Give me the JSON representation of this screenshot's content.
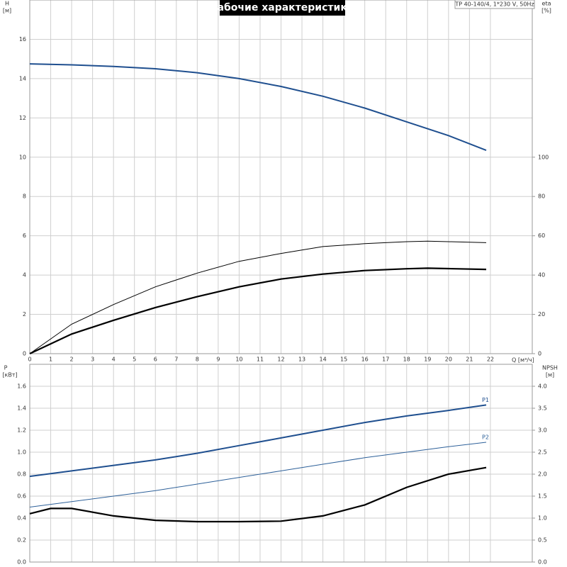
{
  "chart_data": [
    {
      "type": "line",
      "title": "Рабочие характеристики",
      "model": "TP 40-140/4, 1*230 V, 50Hz",
      "ylabel": "H",
      "yunit": "[м]",
      "y2label": "eta",
      "y2unit": "[%]",
      "xlabel": "Q [м³/ч]",
      "xlim": [
        0,
        24
      ],
      "xticks": [
        0,
        1,
        2,
        3,
        4,
        5,
        6,
        7,
        8,
        9,
        10,
        11,
        12,
        13,
        14,
        15,
        16,
        17,
        18,
        19,
        20,
        21,
        22
      ],
      "ylim": [
        0,
        18
      ],
      "yticks": [
        0,
        2,
        4,
        6,
        8,
        10,
        12,
        14,
        16
      ],
      "y2lim": [
        0,
        180
      ],
      "y2ticks": [
        0,
        20,
        40,
        60,
        80,
        100
      ],
      "grid": true,
      "series": [
        {
          "color": "#1f4f8f",
          "line_width": 2,
          "x": [
            0,
            2,
            4,
            6,
            8,
            10,
            12,
            14,
            16,
            18,
            20,
            21.8
          ],
          "values": [
            14.75,
            14.7,
            14.62,
            14.5,
            14.3,
            14.0,
            13.6,
            13.1,
            12.5,
            11.8,
            11.1,
            10.35
          ]
        },
        {
          "color": "#000000",
          "line_width": 1,
          "axis": "y2",
          "x": [
            0,
            2,
            4,
            6,
            8,
            10,
            12,
            14,
            16,
            18,
            19,
            20,
            21.8
          ],
          "values": [
            0,
            15,
            25,
            34,
            41,
            47,
            51,
            54.5,
            56,
            57,
            57.3,
            57,
            56.5
          ]
        },
        {
          "color": "#000000",
          "line_width": 2.2,
          "axis": "y2",
          "x": [
            0,
            2,
            4,
            6,
            8,
            10,
            12,
            14,
            16,
            18,
            19,
            20,
            21.8
          ],
          "values": [
            0,
            10,
            17,
            23.5,
            29,
            34,
            38,
            40.5,
            42.3,
            43.2,
            43.5,
            43.3,
            42.9
          ]
        }
      ]
    },
    {
      "type": "line",
      "ylabel": "P",
      "yunit": "[кВт]",
      "y2label": "NPSH",
      "y2unit": "[м]",
      "xlim": [
        0,
        24
      ],
      "ylim": [
        0,
        1.8
      ],
      "yticks": [
        {
          "value": 0,
          "label": "0.0"
        },
        0.2,
        0.4,
        0.6,
        0.8,
        {
          "value": 1,
          "label": "1.0"
        },
        1.2,
        1.4,
        1.6
      ],
      "y2lim": [
        0,
        4.5
      ],
      "y2ticks": [
        {
          "value": 0,
          "label": "0.0"
        },
        0.5,
        {
          "value": 1,
          "label": "1.0"
        },
        1.5,
        {
          "value": 2,
          "label": "2.0"
        },
        2.5,
        {
          "value": 3,
          "label": "3.0"
        },
        3.5,
        {
          "value": 4,
          "label": "4.0"
        }
      ],
      "grid": true,
      "series": [
        {
          "name": "P1",
          "color": "#1f4f8f",
          "line_width": 2,
          "x": [
            0,
            2,
            4,
            6,
            8,
            10,
            12,
            14,
            16,
            18,
            20,
            21.8
          ],
          "values": [
            0.78,
            0.83,
            0.88,
            0.93,
            0.99,
            1.06,
            1.13,
            1.2,
            1.27,
            1.33,
            1.38,
            1.43
          ]
        },
        {
          "name": "P2",
          "color": "#2d6099",
          "line_width": 1,
          "x": [
            0,
            2,
            4,
            6,
            8,
            10,
            12,
            14,
            16,
            18,
            20,
            21.8
          ],
          "values": [
            0.5,
            0.55,
            0.6,
            0.65,
            0.71,
            0.77,
            0.83,
            0.89,
            0.95,
            1.0,
            1.05,
            1.09
          ]
        },
        {
          "color": "#000000",
          "line_width": 2.2,
          "axis": "y2",
          "x": [
            0,
            1,
            2,
            4,
            6,
            8,
            10,
            12,
            14,
            16,
            18,
            20,
            21.8
          ],
          "values": [
            1.1,
            1.22,
            1.22,
            1.05,
            0.95,
            0.92,
            0.92,
            0.93,
            1.05,
            1.3,
            1.7,
            2.0,
            2.15
          ]
        }
      ]
    }
  ]
}
